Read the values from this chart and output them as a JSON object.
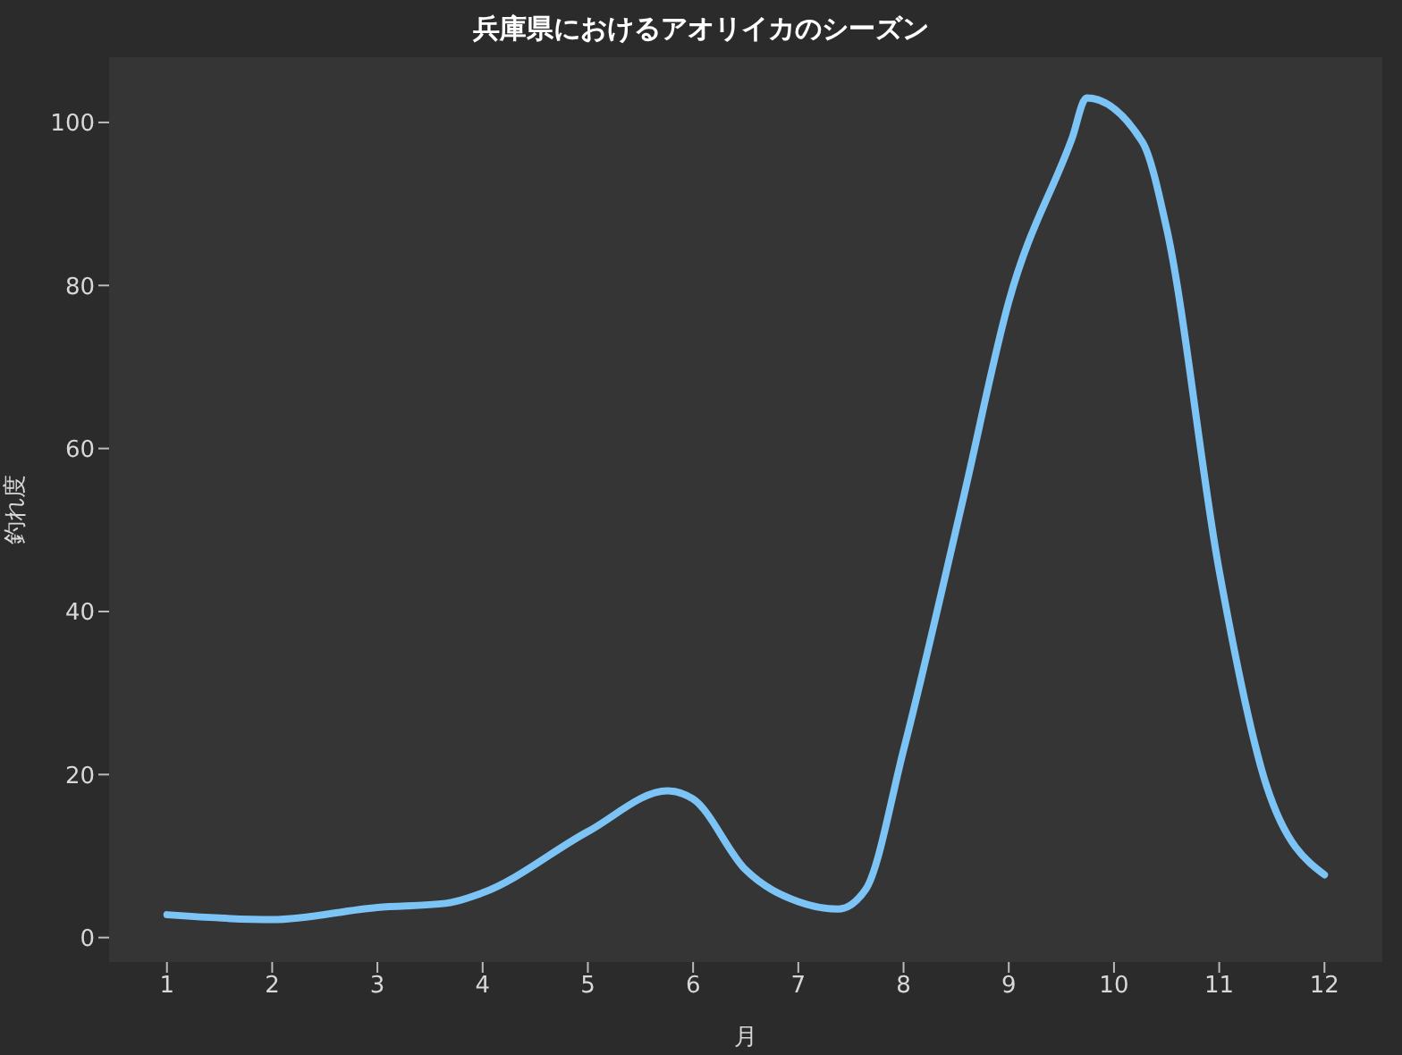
{
  "chart_data": {
    "type": "line",
    "title": "兵庫県におけるアオリイカのシーズン",
    "xlabel": "月",
    "ylabel": "釣れ度",
    "x": [
      1,
      2,
      3,
      3.65,
      4,
      5,
      5.76,
      6,
      6.5,
      7,
      7.38,
      7.64,
      8,
      8.57,
      9,
      9.6,
      9.74,
      10.27,
      10.5,
      11,
      11.45,
      12
    ],
    "series": [
      {
        "color": "#7cc4f5",
        "values": [
          2.8,
          2.2,
          3.7,
          4.2,
          5.5,
          13,
          18,
          17,
          8.3,
          4.4,
          3.5,
          5.9,
          23,
          54,
          78,
          98,
          103,
          97.6,
          87,
          45,
          18.6,
          7.7
        ]
      }
    ],
    "xlim": [
      0.45,
      12.55
    ],
    "ylim": [
      -3,
      108
    ],
    "xticks": [
      1,
      2,
      3,
      4,
      5,
      6,
      7,
      8,
      9,
      10,
      11,
      12
    ],
    "yticks": [
      0,
      20,
      40,
      60,
      80,
      100
    ],
    "line_style": "solid",
    "marker": "none"
  }
}
